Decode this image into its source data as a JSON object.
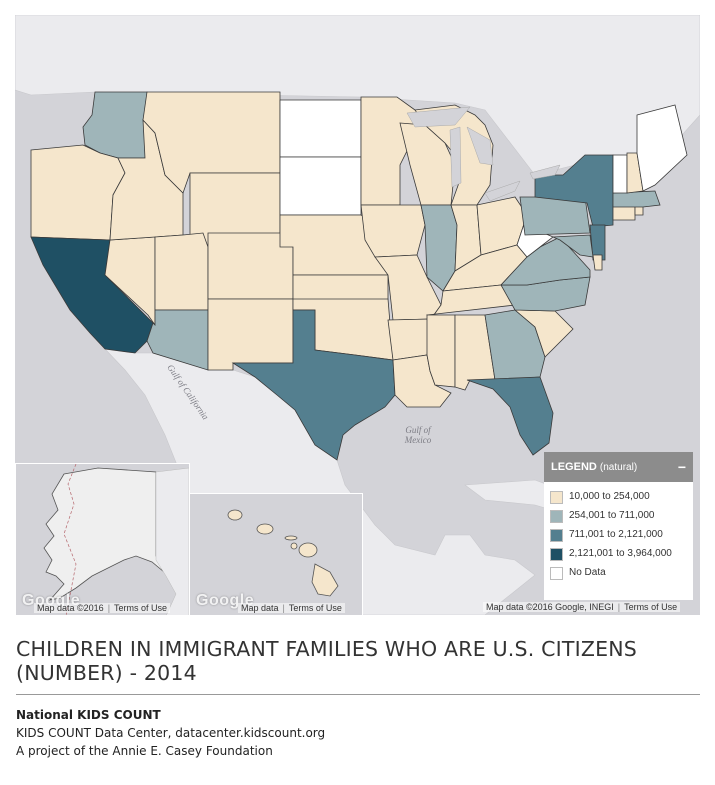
{
  "legend": {
    "title": "LEGEND",
    "subtitle": "(natural)",
    "collapse_symbol": "−",
    "items": [
      {
        "label": "10,000 to 254,000",
        "color": "#f5e6cc"
      },
      {
        "label": "254,001 to 711,000",
        "color": "#9fb5b9"
      },
      {
        "label": "711,001 to 2,121,000",
        "color": "#547f8f"
      },
      {
        "label": "2,121,001 to 3,964,000",
        "color": "#1f5064"
      },
      {
        "label": "No Data",
        "color": "#ffffff"
      }
    ]
  },
  "map": {
    "water_labels": {
      "gulf_california": "Gulf of California",
      "gulf_mexico": "Gulf of Mexico"
    },
    "attribution_main": {
      "map_data": "Map data ©2016 Google, INEGI",
      "terms": "Terms of Use"
    },
    "attribution_alaska": {
      "map_data": "Map data ©2016",
      "terms": "Terms of Use"
    },
    "attribution_hawaii": {
      "map_data": "Map data",
      "terms": "Terms of Use"
    },
    "google_logo": "Google",
    "state_classes": {
      "WA": 1,
      "OR": 0,
      "CA": 3,
      "NV": 0,
      "ID": 0,
      "MT": 0,
      "WY": 0,
      "UT": 0,
      "AZ": 1,
      "CO": 0,
      "NM": 0,
      "ND": 4,
      "SD": 4,
      "NE": 0,
      "KS": 0,
      "OK": 0,
      "TX": 2,
      "MN": 0,
      "IA": 0,
      "MO": 0,
      "AR": 0,
      "LA": 0,
      "WI": 0,
      "IL": 1,
      "MI": 0,
      "IN": 0,
      "OH": 0,
      "KY": 0,
      "TN": 0,
      "MS": 0,
      "AL": 0,
      "GA": 1,
      "FL": 2,
      "SC": 0,
      "NC": 1,
      "VA": 1,
      "WV": 4,
      "PA": 1,
      "NY": 2,
      "NJ": 2,
      "MD": 1,
      "DE": 0,
      "CT": 0,
      "MA": 1,
      "VT": 4,
      "NH": 0,
      "ME": 4,
      "RI": 0,
      "AK": 4,
      "HI": 0
    }
  },
  "footer": {
    "title": "CHILDREN IN IMMIGRANT FAMILIES WHO ARE U.S. CITIZENS (NUMBER) - 2014",
    "org": "National KIDS COUNT",
    "line2": "KIDS COUNT Data Center, datacenter.kidscount.org",
    "line3": "A project of the Annie E. Casey Foundation"
  }
}
